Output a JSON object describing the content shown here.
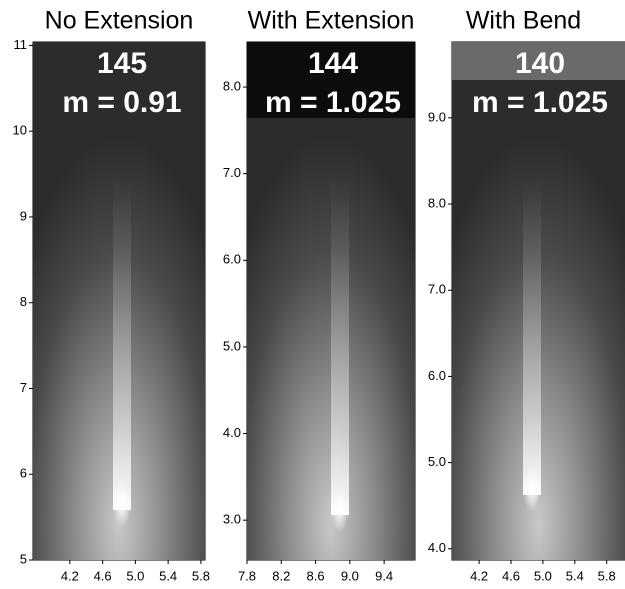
{
  "chart_data": [
    {
      "type": "image",
      "title": "No Extension",
      "annotations": [
        "145",
        "m = 0.91"
      ],
      "xlim": [
        3.75,
        5.85
      ],
      "ylim": [
        5,
        11.04
      ],
      "xticks": [
        4.2,
        4.6,
        {
          "value": 5,
          "label": "5.0"
        },
        5.4,
        5.8
      ],
      "yticks": [
        5,
        6,
        7,
        8,
        9,
        10,
        11
      ]
    },
    {
      "type": "image",
      "title": "With Extension",
      "annotations": [
        "144",
        "m = 1.025"
      ],
      "xlim": [
        7.8,
        9.76
      ],
      "ylim": [
        2.54,
        8.52
      ],
      "xticks": [
        7.8,
        8.2,
        8.6,
        {
          "value": 9,
          "label": "9.0"
        },
        9.4
      ],
      "yticks": [
        {
          "value": 3,
          "label": "3.0"
        },
        {
          "value": 4,
          "label": "4.0"
        },
        {
          "value": 5,
          "label": "5.0"
        },
        {
          "value": 6,
          "label": "6.0"
        },
        {
          "value": 7,
          "label": "7.0"
        },
        {
          "value": 8,
          "label": "8.0"
        }
      ]
    },
    {
      "type": "image",
      "title": "With Bend",
      "annotations": [
        "140",
        "m = 1.025"
      ],
      "xlim": [
        3.86,
        6.03
      ],
      "ylim": [
        3.87,
        9.88
      ],
      "xticks": [
        4.2,
        4.6,
        {
          "value": 5,
          "label": "5.0"
        },
        5.4,
        5.8
      ],
      "yticks": [
        {
          "value": 4,
          "label": "4.0"
        },
        {
          "value": 5,
          "label": "5.0"
        },
        {
          "value": 6,
          "label": "6.0"
        },
        {
          "value": 7,
          "label": "7.0"
        },
        {
          "value": 8,
          "label": "8.0"
        },
        {
          "value": 9,
          "label": "9.0"
        }
      ]
    }
  ]
}
